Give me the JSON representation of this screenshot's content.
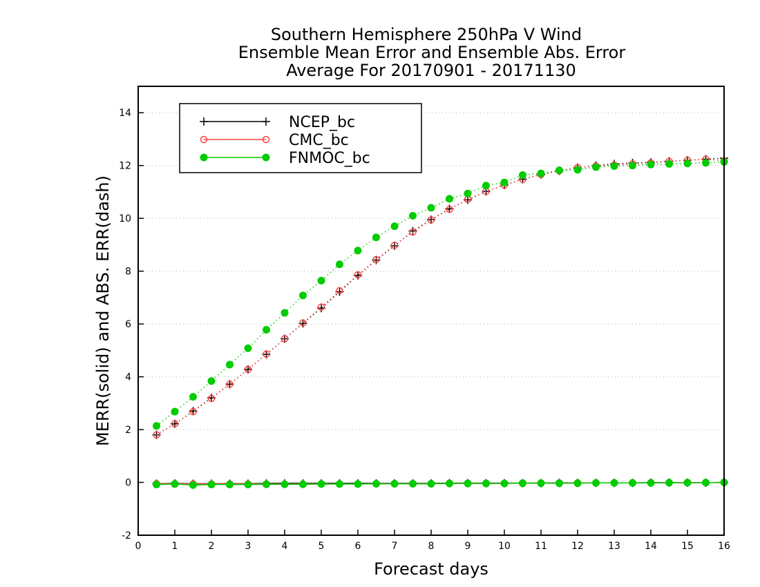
{
  "chart_data": {
    "type": "line",
    "title_lines": [
      "Southern Hemisphere 250hPa V Wind",
      "Ensemble Mean Error and Ensemble Abs. Error",
      "Average For 20170901 - 20171130"
    ],
    "xlabel": "Forecast days",
    "ylabel": "MERR(solid) and ABS. ERR(dash)",
    "xlim": [
      0,
      16
    ],
    "ylim": [
      -2,
      15
    ],
    "xticks": [
      "0",
      "1",
      "2",
      "3",
      "4",
      "5",
      "6",
      "7",
      "8",
      "9",
      "10",
      "11",
      "12",
      "13",
      "14",
      "15",
      "16"
    ],
    "yticks": [
      "-2",
      "0",
      "2",
      "4",
      "6",
      "8",
      "10",
      "12",
      "14"
    ],
    "grid": "horizontal dotted",
    "legend_position": "top-left",
    "x": [
      0.5,
      1,
      1.5,
      2,
      2.5,
      3,
      3.5,
      4,
      4.5,
      5,
      5.5,
      6,
      6.5,
      7,
      7.5,
      8,
      8.5,
      9,
      9.5,
      10,
      10.5,
      11,
      11.5,
      12,
      12.5,
      13,
      13.5,
      14,
      14.5,
      15,
      15.5,
      16
    ],
    "series": [
      {
        "name": "NCEP_bc",
        "color": "#000000",
        "marker": "plus",
        "merr": [
          -0.05,
          -0.04,
          -0.05,
          -0.05,
          -0.05,
          -0.05,
          -0.04,
          -0.04,
          -0.04,
          -0.04,
          -0.04,
          -0.04,
          -0.04,
          -0.04,
          -0.04,
          -0.04,
          -0.03,
          -0.03,
          -0.03,
          -0.03,
          -0.03,
          -0.03,
          -0.02,
          -0.02,
          -0.02,
          -0.02,
          -0.02,
          -0.01,
          -0.01,
          -0.01,
          -0.01,
          0.0
        ],
        "abs_err": [
          1.8,
          2.22,
          2.7,
          3.2,
          3.72,
          4.28,
          4.85,
          5.44,
          6.02,
          6.6,
          7.22,
          7.84,
          8.42,
          8.96,
          9.52,
          9.95,
          10.36,
          10.7,
          11.02,
          11.26,
          11.48,
          11.66,
          11.8,
          11.92,
          12.0,
          12.06,
          12.1,
          12.12,
          12.16,
          12.2,
          12.24,
          12.28
        ]
      },
      {
        "name": "CMC_bc",
        "color": "#ff4040",
        "marker": "open-circle",
        "merr": [
          -0.05,
          -0.05,
          -0.06,
          -0.06,
          -0.06,
          -0.06,
          -0.06,
          -0.06,
          -0.06,
          -0.06,
          -0.06,
          -0.06,
          -0.05,
          -0.05,
          -0.05,
          -0.05,
          -0.04,
          -0.04,
          -0.04,
          -0.04,
          -0.03,
          -0.03,
          -0.03,
          -0.02,
          -0.02,
          -0.02,
          -0.02,
          -0.02,
          -0.01,
          -0.01,
          -0.01,
          -0.01
        ],
        "abs_err": [
          1.8,
          2.22,
          2.68,
          3.18,
          3.72,
          4.28,
          4.86,
          5.44,
          6.04,
          6.64,
          7.26,
          7.86,
          8.44,
          8.98,
          9.48,
          9.94,
          10.34,
          10.72,
          11.02,
          11.26,
          11.48,
          11.66,
          11.8,
          11.92,
          11.98,
          12.02,
          12.06,
          12.1,
          12.16,
          12.2,
          12.24,
          12.18
        ]
      },
      {
        "name": "FNMOC_bc",
        "color": "#00cc00",
        "marker": "filled-circle",
        "merr": [
          -0.08,
          -0.06,
          -0.1,
          -0.08,
          -0.08,
          -0.08,
          -0.07,
          -0.07,
          -0.07,
          -0.06,
          -0.06,
          -0.06,
          -0.05,
          -0.05,
          -0.05,
          -0.05,
          -0.04,
          -0.04,
          -0.04,
          -0.04,
          -0.03,
          -0.03,
          -0.03,
          -0.03,
          -0.02,
          -0.02,
          -0.02,
          -0.02,
          -0.01,
          -0.01,
          -0.01,
          0.0
        ],
        "abs_err": [
          2.14,
          2.68,
          3.24,
          3.84,
          4.46,
          5.08,
          5.78,
          6.42,
          7.08,
          7.64,
          8.26,
          8.78,
          9.28,
          9.7,
          10.1,
          10.4,
          10.74,
          10.94,
          11.24,
          11.36,
          11.64,
          11.7,
          11.82,
          11.84,
          11.94,
          11.98,
          12.0,
          12.04,
          12.06,
          12.08,
          12.1,
          12.14
        ]
      }
    ]
  }
}
